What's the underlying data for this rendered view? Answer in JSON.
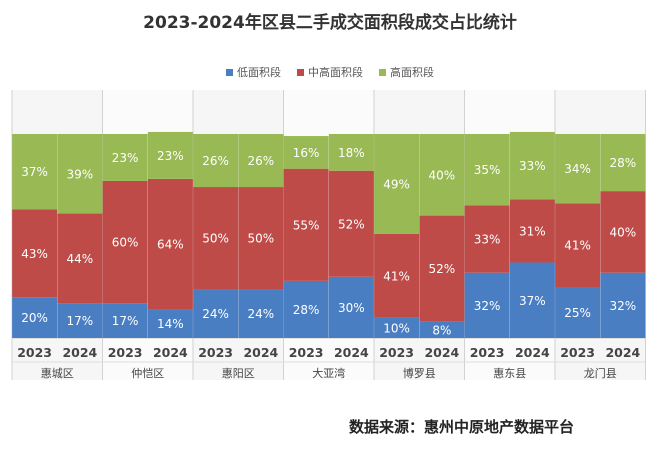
{
  "chart_data": {
    "type": "bar",
    "stacked": true,
    "title": "2023-2024年区县二手成交面积段成交占比统计",
    "groups": [
      "惠城区",
      "仲恺区",
      "惠阳区",
      "大亚湾",
      "博罗县",
      "惠东县",
      "龙门县"
    ],
    "years": [
      "2023",
      "2024"
    ],
    "categories": [
      "2023",
      "2024",
      "2023",
      "2024",
      "2023",
      "2024",
      "2023",
      "2024",
      "2023",
      "2024",
      "2023",
      "2024",
      "2023",
      "2024"
    ],
    "series": [
      {
        "name": "低面积段",
        "color": "#4a7ec2",
        "values": [
          20,
          17,
          17,
          14,
          24,
          24,
          28,
          30,
          10,
          8,
          32,
          37,
          25,
          32
        ]
      },
      {
        "name": "中高面积段",
        "color": "#be4b48",
        "values": [
          43,
          44,
          60,
          64,
          50,
          50,
          55,
          52,
          41,
          52,
          33,
          31,
          41,
          40
        ]
      },
      {
        "name": "高面积段",
        "color": "#98b954",
        "values": [
          37,
          39,
          23,
          23,
          26,
          26,
          16,
          18,
          49,
          40,
          35,
          33,
          34,
          28
        ]
      }
    ],
    "ylim": [
      0,
      100
    ],
    "legend_position": "top",
    "grid": false
  },
  "source": "数据来源：惠州中原地产数据平台"
}
